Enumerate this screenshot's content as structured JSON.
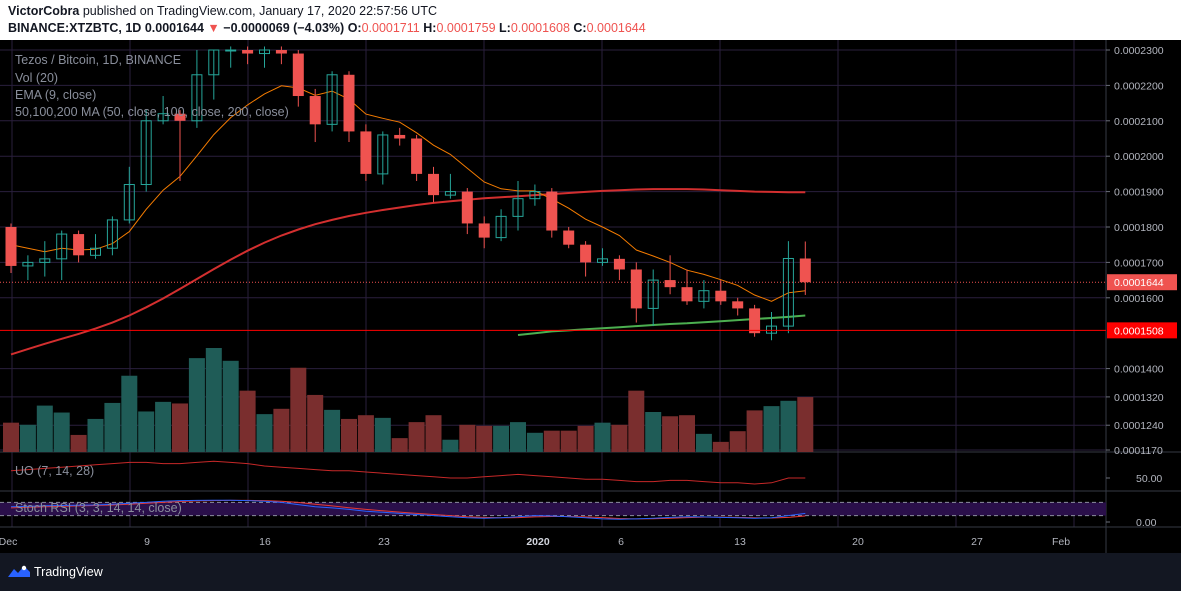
{
  "header": {
    "publisher_name": "VictorCobra",
    "publisher_text": "published on TradingView.com, January 17, 2020 22:57:56 UTC",
    "symbol": "BINANCE:XTZBTC, 1D",
    "last": "0.0001644",
    "arrow": "▼",
    "change": "−0.0000069 (−4.03%)",
    "o_label": "O:",
    "o": "0.0001711",
    "h_label": "H:",
    "h": "0.0001759",
    "l_label": "L:",
    "l": "0.0001608",
    "c_label": "C:",
    "c": "0.0001644"
  },
  "legend": {
    "title": "Tezos / Bitcoin, 1D, BINANCE",
    "vol": "Vol (20)",
    "ema": "EMA (9, close)",
    "ma": "50,100,200 MA (50, close, 100, close, 200, close)",
    "uo": "UO (7, 14, 28)",
    "stoch": "Stoch RSI (3, 3, 14, 14, close)"
  },
  "footer": {
    "brand": "TradingView",
    "logo_icon": "tradingview-logo-icon"
  },
  "colors": {
    "background": "#000000",
    "up": "#26a69a",
    "down": "#ef5350",
    "vol_up": "#1f5c57",
    "vol_down": "#7a2e2e",
    "ema": "#f57c00",
    "ma50": "#d32f2f",
    "ma100": "#4caf50",
    "uo": "#c62828",
    "stoch_k": "#2962ff",
    "stoch_d": "#e53935",
    "grid": "#2a1f3d",
    "text": "#b2b5be",
    "last_price_line": "#ef5350",
    "support_line": "#ff0000"
  },
  "chart_data": {
    "type": "candlestick",
    "symbol": "XTZBTC",
    "exchange": "BINANCE",
    "interval": "1D",
    "x_ticks": [
      "Dec",
      "9",
      "16",
      "23",
      "2020",
      "6",
      "13",
      "20",
      "27",
      "Feb"
    ],
    "y_ticks": [
      "0.0002300",
      "0.0002200",
      "0.0002100",
      "0.0002000",
      "0.0001900",
      "0.0001800",
      "0.0001700",
      "0.0001600",
      "0.0001400",
      "0.0001320",
      "0.0001240",
      "0.0001170"
    ],
    "y_range": [
      0.000117,
      0.00023
    ],
    "last_price_label": "0.0001644",
    "support_label": "0.0001508",
    "last_price": 0.0001644,
    "support": 0.0001508,
    "candles": [
      {
        "o": 0.00018,
        "h": 0.000181,
        "l": 0.000167,
        "c": 0.000169
      },
      {
        "o": 0.000169,
        "h": 0.000172,
        "l": 0.000165,
        "c": 0.00017
      },
      {
        "o": 0.00017,
        "h": 0.000176,
        "l": 0.000166,
        "c": 0.000171
      },
      {
        "o": 0.000171,
        "h": 0.000179,
        "l": 0.000165,
        "c": 0.000178
      },
      {
        "o": 0.000178,
        "h": 0.000179,
        "l": 0.00017,
        "c": 0.000172
      },
      {
        "o": 0.000172,
        "h": 0.000178,
        "l": 0.000171,
        "c": 0.000174
      },
      {
        "o": 0.000174,
        "h": 0.000183,
        "l": 0.000172,
        "c": 0.000182
      },
      {
        "o": 0.000182,
        "h": 0.000197,
        "l": 0.000181,
        "c": 0.000192
      },
      {
        "o": 0.000192,
        "h": 0.000213,
        "l": 0.00019,
        "c": 0.00021
      },
      {
        "o": 0.00021,
        "h": 0.000217,
        "l": 0.000209,
        "c": 0.000212
      },
      {
        "o": 0.000212,
        "h": 0.000213,
        "l": 0.000193,
        "c": 0.00021
      },
      {
        "o": 0.00021,
        "h": 0.00023,
        "l": 0.000208,
        "c": 0.000223
      },
      {
        "o": 0.000223,
        "h": 0.00023,
        "l": 0.000216,
        "c": 0.00023
      },
      {
        "o": 0.00023,
        "h": 0.000231,
        "l": 0.000225,
        "c": 0.00023
      },
      {
        "o": 0.00023,
        "h": 0.000231,
        "l": 0.000226,
        "c": 0.000229
      },
      {
        "o": 0.000229,
        "h": 0.000231,
        "l": 0.000225,
        "c": 0.00023
      },
      {
        "o": 0.00023,
        "h": 0.000231,
        "l": 0.000226,
        "c": 0.000229
      },
      {
        "o": 0.000229,
        "h": 0.00023,
        "l": 0.000214,
        "c": 0.000217
      },
      {
        "o": 0.000217,
        "h": 0.000219,
        "l": 0.000204,
        "c": 0.000209
      },
      {
        "o": 0.000209,
        "h": 0.000224,
        "l": 0.000207,
        "c": 0.000223
      },
      {
        "o": 0.000223,
        "h": 0.000224,
        "l": 0.000204,
        "c": 0.000207
      },
      {
        "o": 0.000207,
        "h": 0.000209,
        "l": 0.000193,
        "c": 0.000195
      },
      {
        "o": 0.000195,
        "h": 0.000207,
        "l": 0.000192,
        "c": 0.000206
      },
      {
        "o": 0.000206,
        "h": 0.000208,
        "l": 0.000203,
        "c": 0.000205
      },
      {
        "o": 0.000205,
        "h": 0.000206,
        "l": 0.000193,
        "c": 0.000195
      },
      {
        "o": 0.000195,
        "h": 0.000197,
        "l": 0.000187,
        "c": 0.000189
      },
      {
        "o": 0.000189,
        "h": 0.000195,
        "l": 0.000188,
        "c": 0.00019
      },
      {
        "o": 0.00019,
        "h": 0.000191,
        "l": 0.000178,
        "c": 0.000181
      },
      {
        "o": 0.000181,
        "h": 0.000183,
        "l": 0.000174,
        "c": 0.000177
      },
      {
        "o": 0.000177,
        "h": 0.000185,
        "l": 0.000176,
        "c": 0.000183
      },
      {
        "o": 0.000183,
        "h": 0.000193,
        "l": 0.000179,
        "c": 0.000188
      },
      {
        "o": 0.000188,
        "h": 0.000192,
        "l": 0.000186,
        "c": 0.00019
      },
      {
        "o": 0.00019,
        "h": 0.000191,
        "l": 0.000177,
        "c": 0.000179
      },
      {
        "o": 0.000179,
        "h": 0.00018,
        "l": 0.000174,
        "c": 0.000175
      },
      {
        "o": 0.000175,
        "h": 0.000176,
        "l": 0.000166,
        "c": 0.00017
      },
      {
        "o": 0.00017,
        "h": 0.000174,
        "l": 0.000169,
        "c": 0.000171
      },
      {
        "o": 0.000171,
        "h": 0.000172,
        "l": 0.000165,
        "c": 0.000168
      },
      {
        "o": 0.000168,
        "h": 0.00017,
        "l": 0.000153,
        "c": 0.000157
      },
      {
        "o": 0.000157,
        "h": 0.000168,
        "l": 0.000152,
        "c": 0.000165
      },
      {
        "o": 0.000165,
        "h": 0.000172,
        "l": 0.000161,
        "c": 0.000163
      },
      {
        "o": 0.000163,
        "h": 0.000168,
        "l": 0.000158,
        "c": 0.000159
      },
      {
        "o": 0.000159,
        "h": 0.000165,
        "l": 0.000157,
        "c": 0.000162
      },
      {
        "o": 0.000162,
        "h": 0.000165,
        "l": 0.000158,
        "c": 0.000159
      },
      {
        "o": 0.000159,
        "h": 0.00016,
        "l": 0.000155,
        "c": 0.000157
      },
      {
        "o": 0.000157,
        "h": 0.000158,
        "l": 0.000149,
        "c": 0.00015
      },
      {
        "o": 0.00015,
        "h": 0.000156,
        "l": 0.000148,
        "c": 0.000152
      },
      {
        "o": 0.000152,
        "h": 0.000176,
        "l": 0.00015,
        "c": 0.0001711
      },
      {
        "o": 0.0001711,
        "h": 0.0001759,
        "l": 0.0001608,
        "c": 0.0001644
      }
    ],
    "volume": [
      0.55,
      0.51,
      0.87,
      0.74,
      0.32,
      0.62,
      0.92,
      1.43,
      0.76,
      0.94,
      0.91,
      1.76,
      1.95,
      1.71,
      1.15,
      0.71,
      0.81,
      1.58,
      1.07,
      0.79,
      0.62,
      0.69,
      0.64,
      0.26,
      0.56,
      0.69,
      0.23,
      0.51,
      0.49,
      0.49,
      0.56,
      0.36,
      0.4,
      0.4,
      0.49,
      0.55,
      0.51,
      1.15,
      0.75,
      0.67,
      0.69,
      0.34,
      0.19,
      0.39,
      0.78,
      0.86,
      0.96,
      1.03
    ],
    "ema9": [
      0.000175,
      0.000174,
      0.000173,
      0.000174,
      0.0001735,
      0.0001737,
      0.0001753,
      0.0001787,
      0.000185,
      0.0001904,
      0.0001943,
      0.0002001,
      0.0002061,
      0.0002109,
      0.0002145,
      0.0002176,
      0.0002199,
      0.0002193,
      0.0002172,
      0.0002184,
      0.0002161,
      0.0002119,
      0.0002107,
      0.0002096,
      0.0002066,
      0.0002031,
      0.0002005,
      0.0001966,
      0.0001927,
      0.0001908,
      0.0001902,
      0.0001902,
      0.0001879,
      0.0001853,
      0.0001822,
      0.00018,
      0.0001776,
      0.0001735,
      0.0001718,
      0.00017,
      0.0001678,
      0.0001666,
      0.0001651,
      0.0001635,
      0.0001608,
      0.000159,
      0.0001614,
      0.000162
    ],
    "ma50": [
      0.000144,
      0.0001455,
      0.000147,
      0.0001484,
      0.0001498,
      0.0001513,
      0.000153,
      0.000155,
      0.0001573,
      0.0001598,
      0.0001625,
      0.0001653,
      0.0001681,
      0.0001708,
      0.0001733,
      0.0001756,
      0.0001776,
      0.0001793,
      0.0001808,
      0.000182,
      0.0001831,
      0.000184,
      0.0001848,
      0.0001855,
      0.0001862,
      0.0001868,
      0.0001873,
      0.0001877,
      0.0001881,
      0.0001884,
      0.0001887,
      0.000189,
      0.0001893,
      0.0001896,
      0.0001899,
      0.0001902,
      0.0001904,
      0.0001906,
      0.0001907,
      0.0001907,
      0.0001907,
      0.0001906,
      0.0001904,
      0.0001902,
      0.00019,
      0.0001899,
      0.0001898,
      0.0001898
    ],
    "ma100": [
      null,
      null,
      null,
      null,
      null,
      null,
      null,
      null,
      null,
      null,
      null,
      null,
      null,
      null,
      null,
      null,
      null,
      null,
      null,
      null,
      null,
      null,
      null,
      null,
      null,
      null,
      null,
      null,
      null,
      null,
      0.0001495,
      0.00015,
      0.0001505,
      0.0001508,
      0.0001511,
      0.0001514,
      0.0001517,
      0.000152,
      0.0001523,
      0.0001526,
      0.0001528,
      0.0001531,
      0.0001534,
      0.0001537,
      0.000154,
      0.0001543,
      0.0001546,
      0.000155
    ],
    "uo_tick": "50.00",
    "uo": [
      56,
      57,
      58,
      59,
      60,
      61,
      62,
      63,
      63,
      62,
      62,
      63,
      64,
      63,
      62,
      60,
      59,
      58,
      57,
      56,
      56,
      55,
      54,
      53,
      52,
      51,
      50,
      50,
      51,
      52,
      53,
      52,
      51,
      50,
      49,
      49,
      48,
      47,
      47,
      48,
      48,
      47,
      46,
      46,
      45,
      46,
      50,
      50
    ],
    "stoch_tick": "0.00",
    "stoch_k": [
      60,
      62,
      65,
      66,
      67,
      68,
      72,
      76,
      80,
      85,
      88,
      89,
      90,
      90,
      88,
      85,
      80,
      70,
      60,
      55,
      48,
      40,
      35,
      30,
      25,
      20,
      15,
      10,
      8,
      10,
      15,
      20,
      18,
      15,
      10,
      5,
      3,
      5,
      8,
      12,
      15,
      14,
      12,
      10,
      8,
      10,
      20,
      30
    ],
    "stoch_d": [
      55,
      58,
      60,
      62,
      64,
      66,
      68,
      72,
      76,
      80,
      84,
      87,
      88,
      89,
      89,
      88,
      85,
      80,
      72,
      64,
      56,
      48,
      42,
      36,
      30,
      25,
      20,
      15,
      12,
      10,
      11,
      14,
      16,
      16,
      14,
      11,
      7,
      5,
      6,
      8,
      11,
      13,
      13,
      12,
      10,
      9,
      12,
      18
    ]
  }
}
